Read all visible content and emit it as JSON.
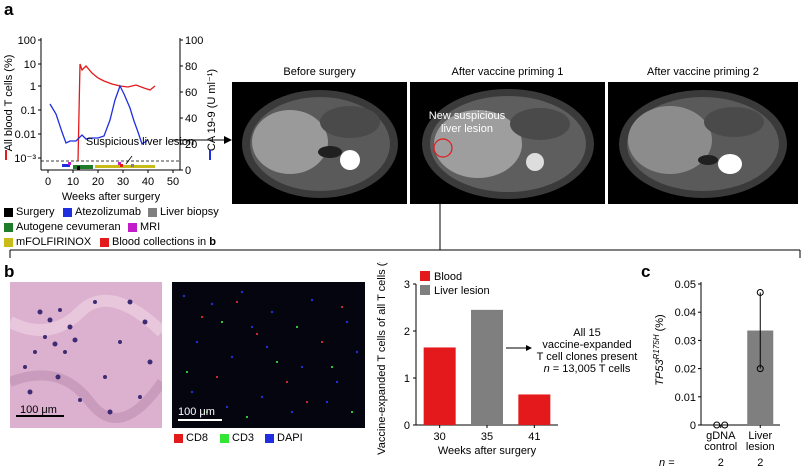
{
  "panel_a": {
    "letter": "a",
    "timeline_chart": {
      "left_axis_label": "All blood T cells (%)",
      "right_axis_label": "CA 19-9 (U ml⁻¹)",
      "x_label": "Weeks after surgery",
      "x_ticks": [
        "0",
        "10",
        "20",
        "30",
        "40",
        "50"
      ],
      "left_ticks": [
        "100",
        "10",
        "1",
        "0.1",
        "0.01",
        "10⁻³"
      ],
      "right_ticks": [
        "100",
        "80",
        "60",
        "40",
        "20",
        "0"
      ],
      "annotation": "Suspicious liver lesion"
    },
    "legend": [
      {
        "label": "Surgery",
        "color": "#000000"
      },
      {
        "label": "Atezolizumab",
        "color": "#1f2fe0"
      },
      {
        "label": "Liver biopsy",
        "color": "#7f7f7f"
      },
      {
        "label": "Autogene cevumeran",
        "color": "#1e7d2a"
      },
      {
        "label": "MRI",
        "color": "#c21bc9"
      },
      {
        "label": "mFOLFIRINOX",
        "color": "#c8bd18"
      },
      {
        "label": "Blood collections in ",
        "bold": "b",
        "color": "#e31a1c"
      }
    ],
    "mri_titles": [
      "Before surgery",
      "After vaccine priming 1",
      "After vaccine priming 2"
    ],
    "mri_annotation": "New suspicious liver lesion"
  },
  "panel_b": {
    "letter": "b",
    "scale_bar_1": "100 μm",
    "scale_bar_2": "100 μm",
    "stain_legend": [
      {
        "label": "CD8",
        "color": "#e31a1c"
      },
      {
        "label": "CD3",
        "color": "#33e633"
      },
      {
        "label": "DAPI",
        "color": "#1f2fe0"
      }
    ],
    "bar_note_line1": "All 15",
    "bar_note_line2": "vaccine-expanded",
    "bar_note_line3": "T cell clones present",
    "bar_note_n": "n",
    "bar_note_n_rest": " = 13,005 T cells"
  },
  "panel_c": {
    "letter": "c",
    "n_label": "n ="
  },
  "chart_data": [
    {
      "type": "bar",
      "title": "",
      "xlabel": "Weeks after surgery",
      "ylabel": "Vaccine-expanded T cells of all T cells (%)",
      "categories": [
        "30",
        "35",
        "41"
      ],
      "values": [
        1.65,
        2.45,
        0.65
      ],
      "bar_colors": [
        "#e3191c",
        "#7f7f7f",
        "#e3191c"
      ],
      "legend": [
        {
          "name": "Blood",
          "color": "#e3191c"
        },
        {
          "name": "Liver lesion",
          "color": "#7f7f7f"
        }
      ],
      "ylim": [
        0,
        3
      ],
      "yticks": [
        "0",
        "1",
        "2",
        "3"
      ]
    },
    {
      "type": "bar",
      "title": "",
      "xlabel": "",
      "ylabel": "TP53 R175H (%)",
      "categories": [
        "gDNA control",
        "Liver lesion"
      ],
      "category_lines": [
        [
          "gDNA",
          "control"
        ],
        [
          "Liver",
          "lesion"
        ]
      ],
      "n": [
        "2",
        "2"
      ],
      "values": [
        0.0,
        0.0335
      ],
      "points": [
        [
          0.0,
          0.0
        ],
        [
          0.047,
          0.02
        ]
      ],
      "ylim": [
        0,
        0.05
      ],
      "yticks": [
        "0",
        "0.01",
        "0.02",
        "0.03",
        "0.04",
        "0.05"
      ]
    }
  ]
}
